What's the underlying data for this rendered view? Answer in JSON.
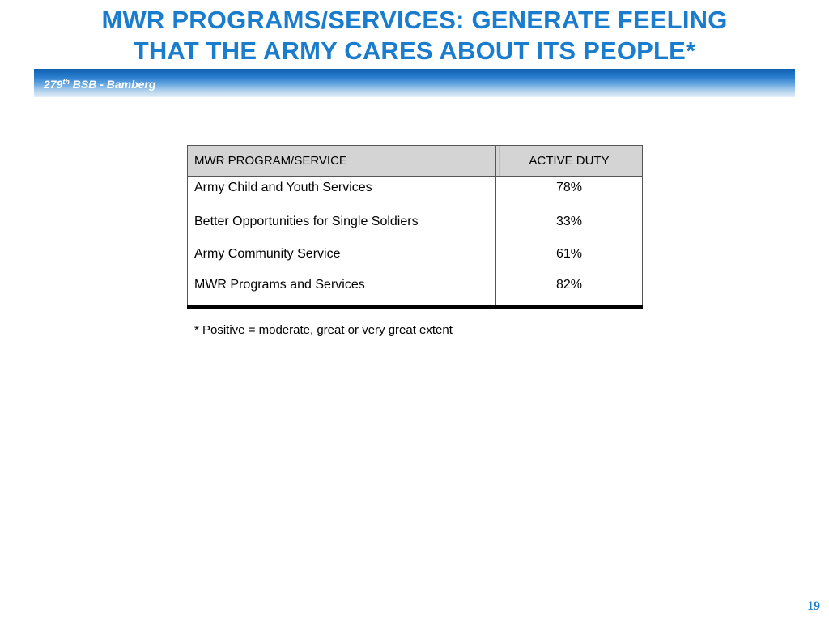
{
  "slide": {
    "title_line1": "MWR PROGRAMS/SERVICES: GENERATE FEELING",
    "title_line2": "THAT THE ARMY CARES ABOUT ITS PEOPLE*",
    "banner": {
      "prefix": "279",
      "superscript": "th",
      "suffix": " BSB - Bamberg"
    },
    "table": {
      "headers": {
        "program": "MWR PROGRAM/SERVICE",
        "active_duty": "ACTIVE DUTY"
      },
      "rows": [
        {
          "program": "Army Child and Youth Services",
          "active_duty": "78%"
        },
        {
          "program": "Better Opportunities for Single Soldiers",
          "active_duty": "33%"
        },
        {
          "program": "Army Community Service",
          "active_duty": "61%"
        },
        {
          "program": "MWR Programs and Services",
          "active_duty": "82%"
        }
      ]
    },
    "footnote": "* Positive = moderate, great or very great extent",
    "page_number": "19"
  },
  "colors": {
    "title": "#1a7ccc",
    "banner_dark": "#0f5fae",
    "banner_light": "#e4eef8",
    "header_fill": "#d4d4d4"
  }
}
